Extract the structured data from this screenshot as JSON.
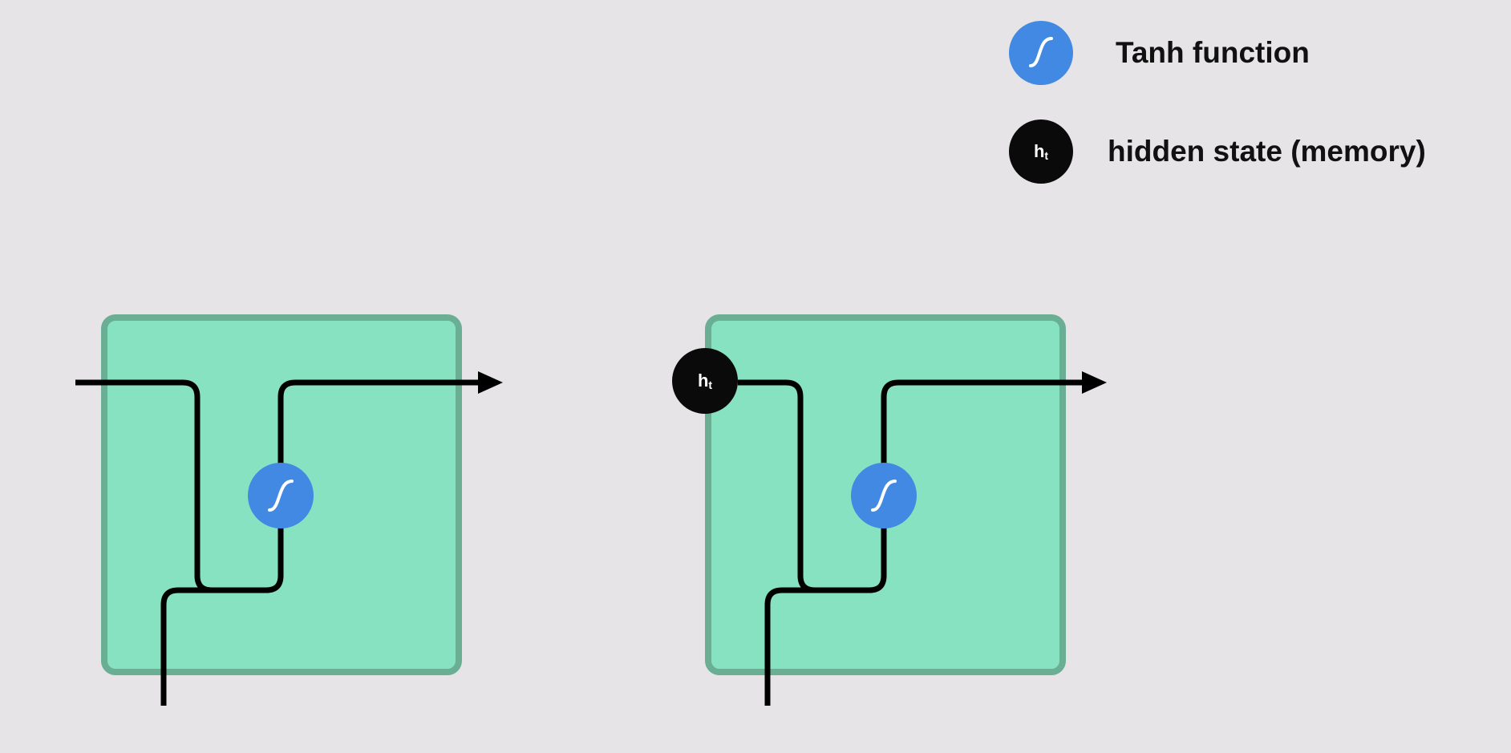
{
  "legend": {
    "tanh_label": "Tanh function",
    "hidden_label": "hidden state (memory)",
    "hidden_symbol": "h",
    "hidden_subscript": "t"
  },
  "cells": [
    {
      "id": "cell-1",
      "has_hidden_state_input": false
    },
    {
      "id": "cell-2",
      "has_hidden_state_input": true
    }
  ],
  "colors": {
    "background": "#e6e4e7",
    "cell_fill": "#86e2c1",
    "cell_border": "#6aae93",
    "tanh": "#4189e2",
    "hidden_state": "#0a0a0a",
    "line": "#000000"
  },
  "icons": {
    "tanh": "sigmoid-curve-icon",
    "arrow": "arrow-right-icon"
  }
}
